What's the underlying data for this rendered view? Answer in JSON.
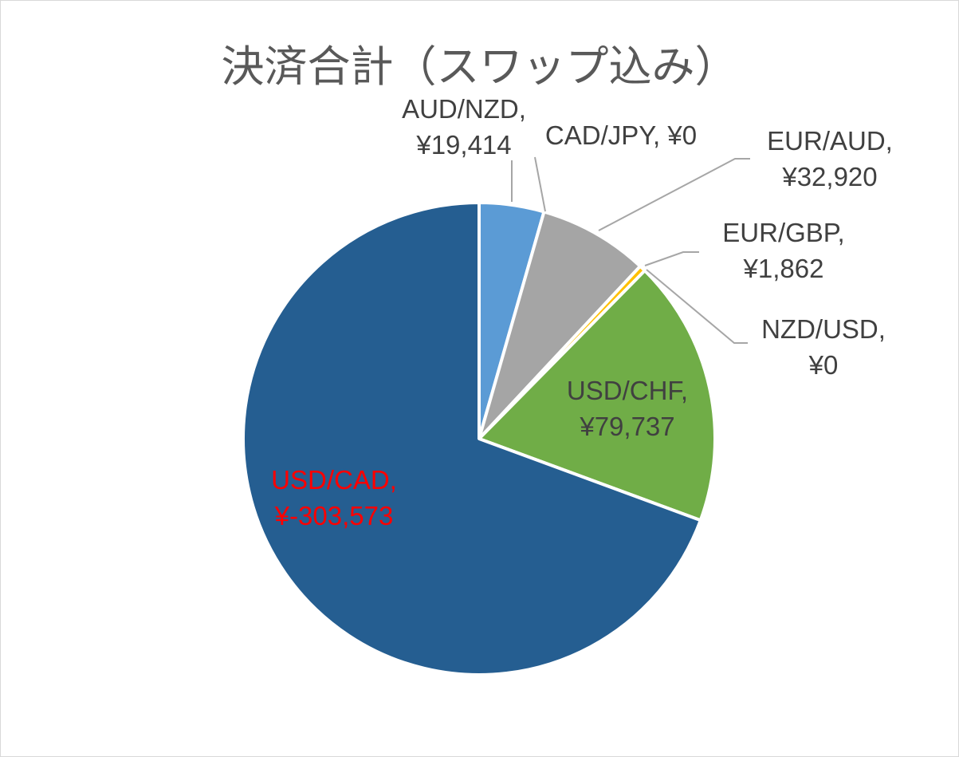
{
  "chart_data": {
    "type": "pie",
    "title": "決済合計（スワップ込み）",
    "categories": [
      "AUD/NZD",
      "CAD/JPY",
      "EUR/AUD",
      "EUR/GBP",
      "NZD/USD",
      "USD/CHF",
      "USD/CAD"
    ],
    "values": [
      19414,
      0,
      32920,
      1862,
      0,
      79737,
      -303573
    ],
    "slice_magnitudes": [
      19414,
      0,
      32920,
      1862,
      0,
      79737,
      303573
    ],
    "labels": [
      {
        "lines": [
          "AUD/NZD,",
          "¥19,414"
        ]
      },
      {
        "lines": [
          "CAD/JPY, ¥0"
        ]
      },
      {
        "lines": [
          "EUR/AUD,",
          "¥32,920"
        ]
      },
      {
        "lines": [
          "EUR/GBP,",
          "¥1,862"
        ]
      },
      {
        "lines": [
          "NZD/USD,",
          "¥0"
        ]
      },
      {
        "lines": [
          "USD/CHF,",
          "¥79,737"
        ]
      },
      {
        "lines": [
          "USD/CAD,",
          "¥-303,573"
        ]
      }
    ],
    "colors": [
      "#5b9bd5",
      "#ed7d31",
      "#a5a5a5",
      "#ffc000",
      "#4472c4",
      "#70ad47",
      "#255e91"
    ],
    "label_colors": [
      "#404040",
      "#404040",
      "#404040",
      "#404040",
      "#404040",
      "#404040",
      "#ff0000"
    ],
    "start_angle": "12 o'clock",
    "direction": "clockwise",
    "legend": "none",
    "slice_border_color": "#ffffff",
    "leader_line_color": "#a6a6a6"
  }
}
